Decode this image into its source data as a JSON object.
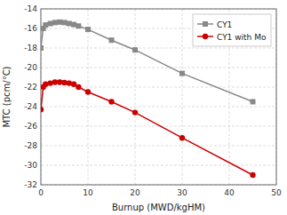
{
  "chart_data": {
    "type": "line",
    "x": [
      0,
      0.5,
      1,
      2,
      3,
      4,
      5,
      6,
      7,
      8,
      10,
      15,
      20,
      30,
      45
    ],
    "series": [
      {
        "name": "CY1",
        "color": "#888888",
        "marker": "square",
        "values": [
          -18.0,
          -16.0,
          -15.65,
          -15.5,
          -15.4,
          -15.35,
          -15.4,
          -15.5,
          -15.6,
          -15.75,
          -16.1,
          -17.2,
          -18.2,
          -20.6,
          -23.5
        ]
      },
      {
        "name": "CY1 with Mo",
        "color": "#cc0000",
        "marker": "circle",
        "values": [
          -24.3,
          -22.0,
          -21.7,
          -21.6,
          -21.5,
          -21.5,
          -21.55,
          -21.6,
          -21.7,
          -22.0,
          -22.5,
          -23.5,
          -24.6,
          -27.2,
          -31.0
        ]
      }
    ],
    "xlabel": "Burnup (MWD/kgHM)",
    "ylabel": "MTC (pcm/°C)",
    "xlim": [
      0,
      50
    ],
    "ylim": [
      -32,
      -14
    ],
    "xticks": [
      0,
      10,
      20,
      30,
      40,
      50
    ],
    "yticks": [
      -32,
      -30,
      -28,
      -26,
      -24,
      -22,
      -20,
      -18,
      -16,
      -14
    ],
    "grid": true,
    "legend": "upper right"
  }
}
